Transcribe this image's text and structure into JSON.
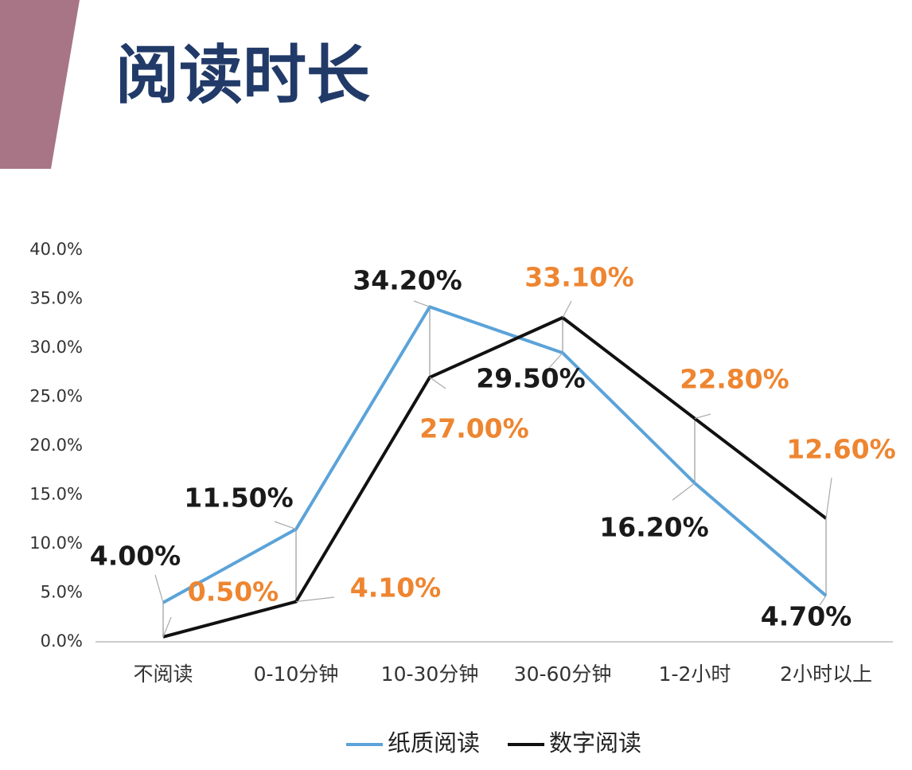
{
  "header": {
    "title": "阅读时长"
  },
  "chart_data": {
    "type": "line",
    "categories": [
      "不阅读",
      "0-10分钟",
      "10-30分钟",
      "30-60分钟",
      "1-2小时",
      "2小时以上"
    ],
    "series": [
      {
        "name": "纸质阅读",
        "color": "#5ba3d9",
        "label_color": "#1a1a1a",
        "values": [
          4.0,
          11.5,
          34.2,
          29.5,
          16.2,
          4.7
        ],
        "value_labels": [
          "4.00%",
          "11.50%",
          "34.20%",
          "29.50%",
          "16.20%",
          "4.70%"
        ]
      },
      {
        "name": "数字阅读",
        "color": "#111111",
        "label_color": "#ee8530",
        "values": [
          0.5,
          4.1,
          27.0,
          33.1,
          22.8,
          12.6
        ],
        "value_labels": [
          "0.50%",
          "4.10%",
          "27.00%",
          "33.10%",
          "22.80%",
          "12.60%"
        ]
      }
    ],
    "ylim": [
      0,
      40
    ],
    "yticks": [
      {
        "value": 0,
        "label": "0.0%"
      },
      {
        "value": 5,
        "label": "5.0%"
      },
      {
        "value": 10,
        "label": "10.0%"
      },
      {
        "value": 15,
        "label": "15.0%"
      },
      {
        "value": 20,
        "label": "20.0%"
      },
      {
        "value": 25,
        "label": "25.0%"
      },
      {
        "value": 30,
        "label": "30.0%"
      },
      {
        "value": 35,
        "label": "35.0%"
      },
      {
        "value": 40,
        "label": "40.0%"
      }
    ],
    "legend": "bottom"
  }
}
